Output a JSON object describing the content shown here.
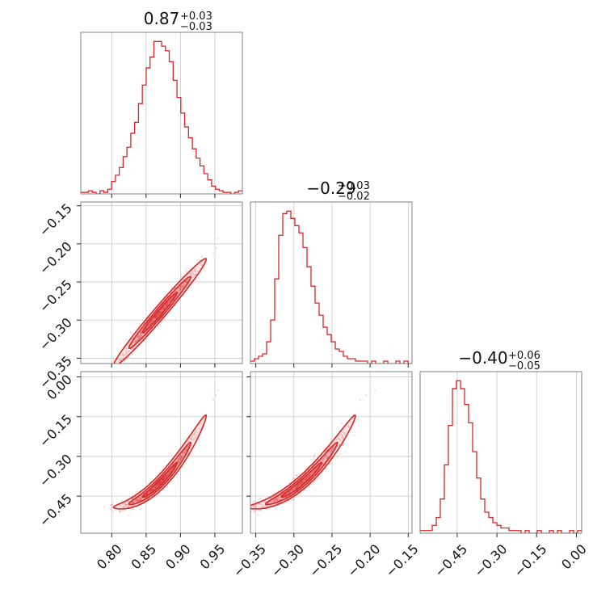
{
  "chart_data": {
    "type": "corner",
    "color": "#d62728",
    "titles": [
      {
        "value": "0.87",
        "plus": "+0.03",
        "minus": "−0.03"
      },
      {
        "value": "−0.29",
        "plus": "+0.03",
        "minus": "−0.02"
      },
      {
        "value": "−0.40",
        "plus": "+0.06",
        "minus": "−0.05"
      }
    ],
    "params": [
      {
        "range": [
          0.755,
          0.99
        ],
        "ticks": [
          0.8,
          0.85,
          0.9,
          0.95
        ],
        "tick_labels": [
          "0.80",
          "0.85",
          "0.90",
          "0.95"
        ]
      },
      {
        "range": [
          -0.357,
          -0.145
        ],
        "ticks": [
          -0.35,
          -0.3,
          -0.25,
          -0.2,
          -0.15
        ],
        "tick_labels": [
          "−0.35",
          "−0.30",
          "−0.25",
          "−0.20",
          "−0.15"
        ]
      },
      {
        "range": [
          -0.59,
          0.02
        ],
        "ticks": [
          -0.45,
          -0.3,
          -0.15,
          0.0
        ],
        "tick_labels": [
          "−0.45",
          "−0.30",
          "−0.15",
          "0.00"
        ]
      }
    ],
    "histograms": [
      {
        "bins": [
          0.755,
          0.99
        ],
        "counts": [
          1,
          1,
          2,
          1,
          0,
          2,
          1,
          3,
          8,
          12,
          17,
          24,
          30,
          39,
          46,
          58,
          70,
          81,
          88,
          98,
          98,
          95,
          92,
          85,
          73,
          62,
          52,
          43,
          36,
          29,
          23,
          18,
          13,
          9,
          5,
          3,
          2,
          1,
          1,
          0,
          1,
          2
        ]
      },
      {
        "bins": [
          -0.357,
          -0.145
        ],
        "counts": [
          1,
          2,
          3,
          4,
          9,
          18,
          35,
          53,
          62,
          63,
          60,
          57,
          54,
          48,
          40,
          32,
          25,
          20,
          15,
          12,
          9,
          6,
          5,
          3,
          2,
          2,
          1,
          1,
          1,
          0,
          1,
          0,
          0,
          1,
          0,
          0,
          1,
          0,
          1,
          0
        ]
      },
      {
        "bins": [
          -0.59,
          0.02
        ],
        "counts": [
          1,
          1,
          1,
          3,
          6,
          13,
          26,
          41,
          55,
          58,
          55,
          49,
          42,
          31,
          21,
          13,
          8,
          6,
          4,
          3,
          2,
          2,
          1,
          1,
          1,
          0,
          1,
          0,
          0,
          1,
          0,
          0,
          1,
          0,
          1,
          0,
          0,
          1,
          0,
          1
        ]
      }
    ],
    "correlation": {
      "p0": {
        "mean": 0.87,
        "sd": 0.028
      },
      "p1": {
        "mean": -0.29,
        "slope": 1.05,
        "sd": 0.006
      },
      "p2": {
        "mean": -0.4,
        "slope": 2.6,
        "curvature": 18,
        "sd": 0.01
      }
    },
    "grid": true
  }
}
